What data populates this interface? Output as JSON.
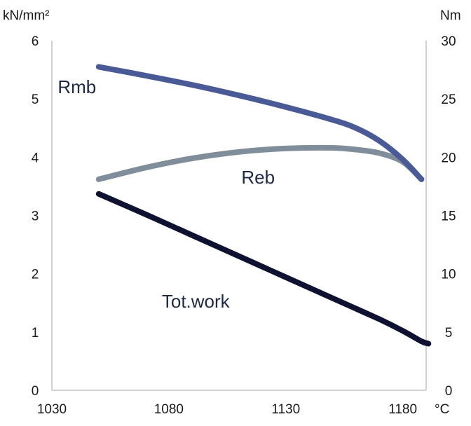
{
  "chart_data": {
    "type": "line",
    "left_unit": "kN/mm²",
    "right_unit": "Nm",
    "x_unit": "°C",
    "x_ticks": [
      1030,
      1080,
      1130,
      1180
    ],
    "y_left_ticks": [
      0,
      1,
      2,
      3,
      4,
      5,
      6
    ],
    "y_right_ticks": [
      0,
      5,
      10,
      15,
      20,
      25,
      30
    ],
    "xlim": [
      1030,
      1190
    ],
    "ylim_left": [
      0,
      6
    ],
    "ylim_right": [
      0,
      30
    ],
    "grid": false,
    "series": [
      {
        "name": "Rmb",
        "color": "#4a5a96",
        "axis": "left",
        "x": [
          1050,
          1070,
          1090,
          1110,
          1130,
          1150,
          1160,
          1170,
          1180,
          1188
        ],
        "values": [
          5.55,
          5.4,
          5.24,
          5.06,
          4.86,
          4.64,
          4.5,
          4.28,
          3.96,
          3.62
        ]
      },
      {
        "name": "Reb",
        "color": "#808e9b",
        "axis": "left",
        "x": [
          1050,
          1070,
          1090,
          1110,
          1130,
          1150,
          1160,
          1170,
          1180,
          1188
        ],
        "values": [
          3.62,
          3.82,
          3.98,
          4.09,
          4.15,
          4.16,
          4.13,
          4.07,
          3.92,
          3.62
        ]
      },
      {
        "name": "Tot.work",
        "color": "#0e1130",
        "axis": "left",
        "x": [
          1050,
          1070,
          1090,
          1110,
          1130,
          1150,
          1170,
          1180,
          1188,
          1191
        ],
        "values": [
          3.37,
          3.02,
          2.66,
          2.3,
          1.94,
          1.58,
          1.22,
          1.02,
          0.84,
          0.8
        ]
      }
    ]
  }
}
